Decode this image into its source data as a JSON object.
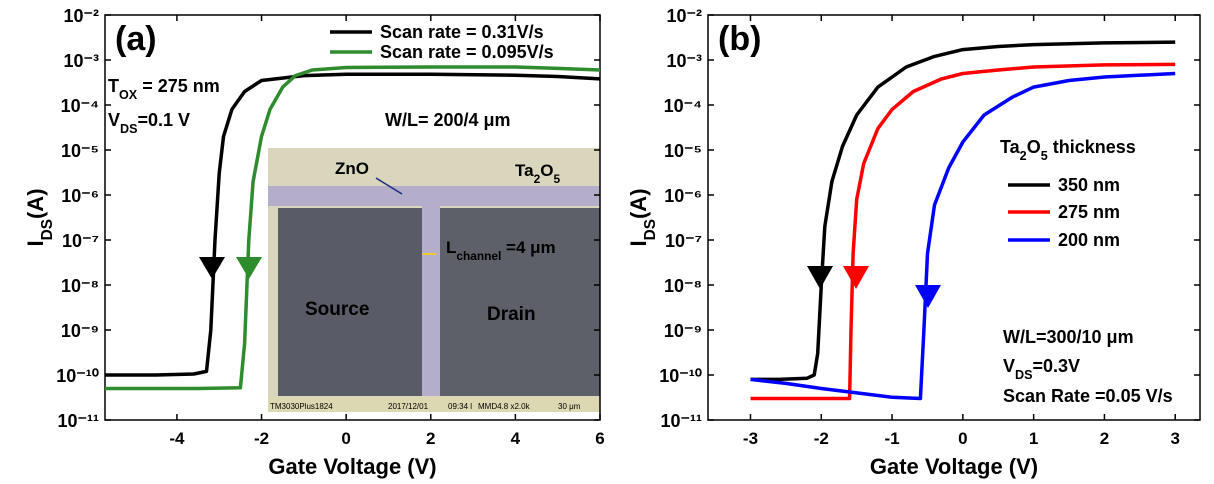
{
  "chart_data": [
    {
      "type": "line",
      "panel_label": "(a)",
      "xlabel": "Gate Voltage (V)",
      "ylabel": [
        "I",
        "DS",
        "(A)"
      ],
      "xlim": [
        -5.7,
        6
      ],
      "xticks": [
        -4,
        -2,
        0,
        2,
        4,
        6
      ],
      "ylim": [
        1e-11,
        0.01
      ],
      "log_y": true,
      "yticks": [
        {
          "value": 1e-11,
          "label": "10⁻¹¹"
        },
        {
          "value": 1e-10,
          "label": "10⁻¹⁰"
        },
        {
          "value": 1e-09,
          "label": "10⁻⁹"
        },
        {
          "value": 1e-08,
          "label": "10⁻⁸"
        },
        {
          "value": 1e-07,
          "label": "10⁻⁷"
        },
        {
          "value": 1e-06,
          "label": "10⁻⁶"
        },
        {
          "value": 1e-05,
          "label": "10⁻⁵"
        },
        {
          "value": 0.0001,
          "label": "10⁻⁴"
        },
        {
          "value": 0.001,
          "label": "10⁻³"
        },
        {
          "value": 0.01,
          "label": "10⁻²"
        }
      ],
      "legend": "upper right",
      "series": [
        {
          "name": "Scan rate = 0.31V/s",
          "color": "#000000",
          "x": [
            -5.7,
            -4.5,
            -3.6,
            -3.3,
            -3.2,
            -3.1,
            -3.0,
            -2.9,
            -2.7,
            -2.4,
            -2.0,
            -1.0,
            0,
            2,
            4,
            5,
            6
          ],
          "values": [
            1e-10,
            1e-10,
            1.05e-10,
            1.2e-10,
            1e-09,
            1e-07,
            3e-06,
            2e-05,
            8e-05,
            0.0002,
            0.00035,
            0.00045,
            0.00048,
            0.00048,
            0.00046,
            0.00043,
            0.00038
          ]
        },
        {
          "name": "Scan rate = 0.095V/s",
          "color": "#2e8b2e",
          "x": [
            -5.7,
            -4.5,
            -3.5,
            -2.5,
            -2.4,
            -2.3,
            -2.2,
            -2.0,
            -1.8,
            -1.5,
            -1.2,
            -0.8,
            0,
            2,
            4,
            5,
            6
          ],
          "values": [
            5e-11,
            5e-11,
            5e-11,
            5.2e-11,
            5e-10,
            1e-07,
            2e-06,
            2e-05,
            8e-05,
            0.00025,
            0.00045,
            0.0006,
            0.00068,
            0.0007,
            0.0007,
            0.00065,
            0.0006
          ]
        }
      ],
      "annotations": [
        [
          "T",
          "OX",
          " = 275 nm"
        ],
        [
          "V",
          "DS",
          "=0.1 V"
        ],
        [
          "W/L= 200/4 μm"
        ]
      ],
      "inset": {
        "zno": [
          "ZnO"
        ],
        "ta2o5": [
          "Ta",
          "2",
          "O",
          "5"
        ],
        "source": [
          "Source"
        ],
        "drain": [
          "Drain"
        ],
        "channel": [
          "L",
          "channel",
          " =4 μm"
        ],
        "footer": [
          "TM3030Plus1824",
          "2017/12/01",
          "09:34 l",
          "MMD4.8  x2.0k",
          "30 μm"
        ]
      }
    },
    {
      "type": "line",
      "panel_label": "(b)",
      "xlabel": "Gate Voltage (V)",
      "ylabel": [
        "I",
        "DS",
        "(A)"
      ],
      "xlim": [
        -3.6,
        3.35
      ],
      "xticks": [
        -3,
        -2,
        -1,
        0,
        1,
        2,
        3
      ],
      "ylim": [
        1e-11,
        0.01
      ],
      "log_y": true,
      "yticks": [
        {
          "value": 1e-11,
          "label": "10⁻¹¹"
        },
        {
          "value": 1e-10,
          "label": "10⁻¹⁰"
        },
        {
          "value": 1e-09,
          "label": "10⁻⁹"
        },
        {
          "value": 1e-08,
          "label": "10⁻⁸"
        },
        {
          "value": 1e-07,
          "label": "10⁻⁷"
        },
        {
          "value": 1e-06,
          "label": "10⁻⁶"
        },
        {
          "value": 1e-05,
          "label": "10⁻⁵"
        },
        {
          "value": 0.0001,
          "label": "10⁻⁴"
        },
        {
          "value": 0.001,
          "label": "10⁻³"
        },
        {
          "value": 0.01,
          "label": "10⁻²"
        }
      ],
      "legend": "center right",
      "legend_title": [
        "Ta",
        "2",
        "O",
        "5",
        " thickness"
      ],
      "series": [
        {
          "name": "350 nm",
          "color": "#000000",
          "x": [
            -3,
            -2.6,
            -2.2,
            -2.1,
            -2.05,
            -2.0,
            -1.95,
            -1.85,
            -1.7,
            -1.5,
            -1.2,
            -0.8,
            -0.4,
            0,
            0.5,
            1,
            2,
            3
          ],
          "values": [
            8e-11,
            8e-11,
            8.5e-11,
            1e-10,
            3e-10,
            1e-08,
            2e-07,
            2e-06,
            1.2e-05,
            6e-05,
            0.00025,
            0.0007,
            0.0012,
            0.0017,
            0.002,
            0.0022,
            0.0024,
            0.0025
          ]
        },
        {
          "name": "275 nm",
          "color": "#ff0000",
          "x": [
            -3,
            -2.5,
            -2.0,
            -1.6,
            -1.58,
            -1.55,
            -1.5,
            -1.4,
            -1.2,
            -1.0,
            -0.7,
            -0.3,
            0,
            0.5,
            1,
            2,
            3
          ],
          "values": [
            3e-11,
            3e-11,
            3e-11,
            3e-11,
            1e-09,
            5e-08,
            8e-07,
            5e-06,
            3e-05,
            8e-05,
            0.0002,
            0.00038,
            0.0005,
            0.0006,
            0.0007,
            0.00078,
            0.0008
          ]
        },
        {
          "name": "200 nm",
          "color": "#0000ff",
          "x": [
            -3,
            -2.5,
            -2.0,
            -1.5,
            -1.0,
            -0.6,
            -0.55,
            -0.5,
            -0.4,
            -0.2,
            0,
            0.3,
            0.7,
            1,
            1.5,
            2,
            3
          ],
          "values": [
            8e-11,
            6.5e-11,
            5e-11,
            4e-11,
            3.2e-11,
            3e-11,
            1e-09,
            5e-08,
            6e-07,
            4e-06,
            1.5e-05,
            6e-05,
            0.00015,
            0.00025,
            0.00035,
            0.00042,
            0.0005
          ]
        }
      ],
      "annotations": [
        [
          "W/L=300/10 μm"
        ],
        [
          "V",
          "DS",
          "=0.3V"
        ],
        [
          "Scan Rate =0.05 V/s"
        ]
      ]
    }
  ]
}
